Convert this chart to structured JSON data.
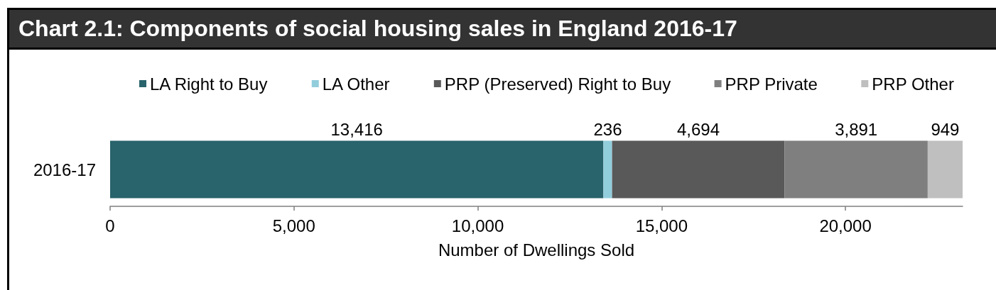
{
  "chart_data": {
    "type": "bar",
    "orientation": "horizontal",
    "stacked": true,
    "title": "Chart 2.1: Components of social housing sales in England 2016-17",
    "xlabel": "Number of Dwellings Sold",
    "categories": [
      "2016-17"
    ],
    "series": [
      {
        "name": "LA Right to Buy",
        "color": "#29636b",
        "values": [
          13416
        ],
        "value_labels": [
          "13,416"
        ]
      },
      {
        "name": "LA Other",
        "color": "#92cddc",
        "values": [
          236
        ],
        "value_labels": [
          "236"
        ]
      },
      {
        "name": "PRP (Preserved) Right to Buy",
        "color": "#595959",
        "values": [
          4694
        ],
        "value_labels": [
          "4,694"
        ]
      },
      {
        "name": "PRP Private",
        "color": "#7f7f7f",
        "values": [
          3891
        ],
        "value_labels": [
          "3,891"
        ]
      },
      {
        "name": "PRP Other",
        "color": "#bfbfbf",
        "values": [
          949
        ],
        "value_labels": [
          "949"
        ]
      }
    ],
    "xlim": [
      0,
      23186
    ],
    "xticks": [
      0,
      {
        "value": 5000,
        "label": "5,000"
      },
      {
        "value": 10000,
        "label": "10,000"
      },
      {
        "value": 15000,
        "label": "15,000"
      },
      {
        "value": 20000,
        "label": "20,000"
      }
    ],
    "legend": "top"
  }
}
